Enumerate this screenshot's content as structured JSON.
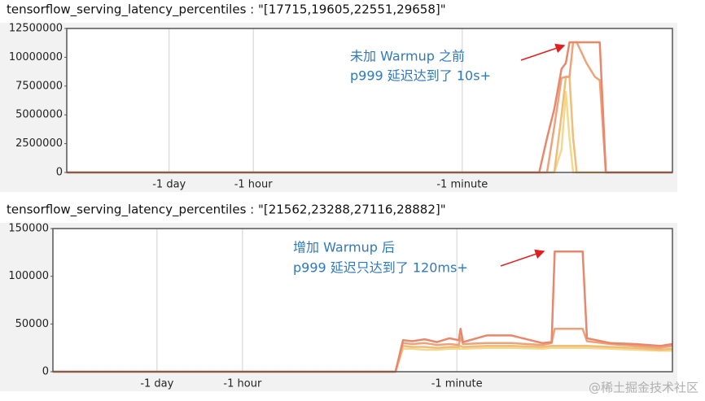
{
  "chart_data": [
    {
      "type": "line",
      "title": "tensorflow_serving_latency_percentiles : \"[17715,19605,22551,29658]\"",
      "annotations": [
        "未加 Warmup 之前",
        "p999 延迟达到了 10s+"
      ],
      "x": [
        0,
        60,
        78,
        79.3,
        80.5,
        81.7,
        82.4,
        83,
        83.6,
        84.2,
        85.8,
        87.2,
        88,
        89,
        100
      ],
      "xlim": [
        0,
        100
      ],
      "xticks": [
        {
          "value": 16.9,
          "label": "-1 day"
        },
        {
          "value": 30.8,
          "label": "-1 hour"
        },
        {
          "value": 65.3,
          "label": "-1 minute"
        }
      ],
      "ylim": [
        0,
        12500000
      ],
      "yticks": [
        0,
        2500000,
        5000000,
        7500000,
        10000000,
        12500000
      ],
      "grid": true,
      "series": [
        {
          "color": "#e8876c",
          "values": [
            0,
            0,
            0,
            3000000,
            5500000,
            9000000,
            9500000,
            11300000,
            11300000,
            11300000,
            11300000,
            11300000,
            11300000,
            0,
            0
          ]
        },
        {
          "color": "#eda27a",
          "values": [
            0,
            0,
            0,
            0,
            4000000,
            8200000,
            8300000,
            8300000,
            11300000,
            11300000,
            9500000,
            8300000,
            8000000,
            0,
            0
          ]
        },
        {
          "color": "#efbd78",
          "values": [
            0,
            0,
            0,
            0,
            0,
            5000000,
            8300000,
            8300000,
            3000000,
            0,
            0,
            0,
            0,
            0,
            0
          ]
        },
        {
          "color": "#f3d88e",
          "values": [
            0,
            0,
            0,
            0,
            0,
            2000000,
            7000000,
            3000000,
            0,
            0,
            0,
            0,
            0,
            0,
            0
          ]
        }
      ]
    },
    {
      "type": "line",
      "title": "tensorflow_serving_latency_percentiles : \"[21562,23288,27116,28882]\"",
      "annotations": [
        "增加 Warmup 后",
        "p999 延迟只达到了 120ms+"
      ],
      "x": [
        0,
        55.3,
        56.5,
        58,
        60,
        62,
        64,
        65.5,
        65.8,
        66.2,
        70,
        74,
        79,
        80.5,
        81,
        85.5,
        86.2,
        90,
        94,
        98,
        100
      ],
      "xlim": [
        0,
        100
      ],
      "xticks": [
        {
          "value": 16.8,
          "label": "-1 day"
        },
        {
          "value": 30.6,
          "label": "-1 hour"
        },
        {
          "value": 65.2,
          "label": "-1 minute"
        }
      ],
      "ylim": [
        0,
        150000
      ],
      "yticks": [
        0,
        50000,
        100000,
        150000
      ],
      "grid": true,
      "series": [
        {
          "color": "#e8876c",
          "values": [
            0,
            0,
            33000,
            32000,
            34000,
            31000,
            35000,
            33000,
            45000,
            31000,
            38000,
            38000,
            30000,
            31000,
            126000,
            126000,
            35000,
            30000,
            29000,
            27000,
            29000
          ]
        },
        {
          "color": "#eda27a",
          "values": [
            0,
            0,
            30000,
            29000,
            30000,
            28000,
            29000,
            28000,
            36000,
            29000,
            30000,
            30000,
            28000,
            30000,
            45000,
            45000,
            32000,
            29000,
            27000,
            25000,
            27000
          ]
        },
        {
          "color": "#efbd78",
          "values": [
            0,
            0,
            27000,
            26000,
            26000,
            25000,
            26000,
            26000,
            27000,
            26000,
            27000,
            27000,
            26000,
            27000,
            27000,
            27000,
            27000,
            26000,
            25000,
            23000,
            24000
          ]
        },
        {
          "color": "#f3d88e",
          "values": [
            0,
            0,
            24000,
            24000,
            23000,
            23000,
            24000,
            24000,
            24000,
            24000,
            25000,
            25000,
            24000,
            25000,
            25000,
            25000,
            25000,
            24000,
            23000,
            22000,
            22000
          ]
        }
      ]
    }
  ],
  "watermark": "@稀土掘金技术社区"
}
